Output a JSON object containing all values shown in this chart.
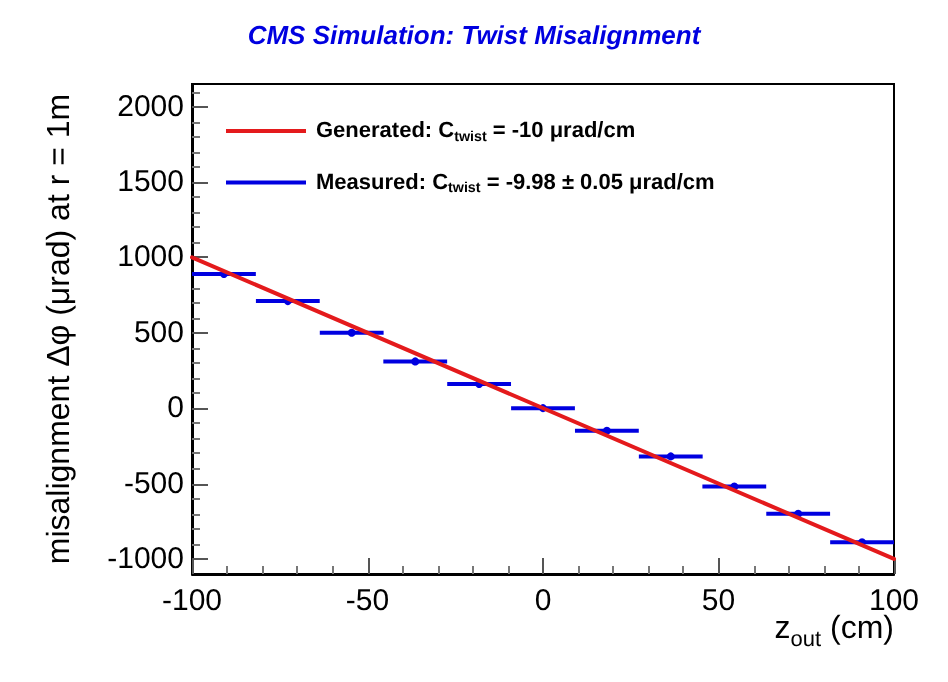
{
  "chart_data": {
    "type": "scatter",
    "title": "CMS Simulation: Twist Misalignment",
    "xlabel": "z$_{out}$ (cm)",
    "ylabel": "misalignment Δφ (μrad) at r = 1m",
    "xlim": [
      -100,
      100
    ],
    "xticks": [
      -100,
      -50,
      0,
      50,
      100
    ],
    "ylim": [
      -1100,
      2150
    ],
    "yticks": [
      -1000,
      -500,
      0,
      500,
      1000,
      1500,
      2000
    ],
    "grid": false,
    "legend": "top left",
    "marker": "circle",
    "series": [
      {
        "name": "Generated: C$_{twist}$ = -10 μrad/cm",
        "type": "line",
        "color": "#e41a1c",
        "marker": "none",
        "line_style": "solid",
        "x": [
          -100,
          100
        ],
        "values": [
          1000,
          -1000
        ]
      },
      {
        "name": "Measured: C$_{twist}$ = -9.98 ± 0.05 μrad/cm",
        "type": "scatter",
        "color": "#0000e0",
        "x": [
          -90.9,
          -72.7,
          -54.5,
          -36.4,
          -18.2,
          0,
          18.2,
          36.4,
          54.5,
          72.7,
          90.9
        ],
        "values": [
          890,
          710,
          500,
          310,
          160,
          0,
          -150,
          -320,
          -520,
          -700,
          -890
        ],
        "xerrors": [
          9.09,
          9.09,
          9.09,
          9.09,
          9.09,
          9.09,
          9.09,
          9.09,
          9.09,
          9.09,
          9.09
        ]
      }
    ]
  }
}
